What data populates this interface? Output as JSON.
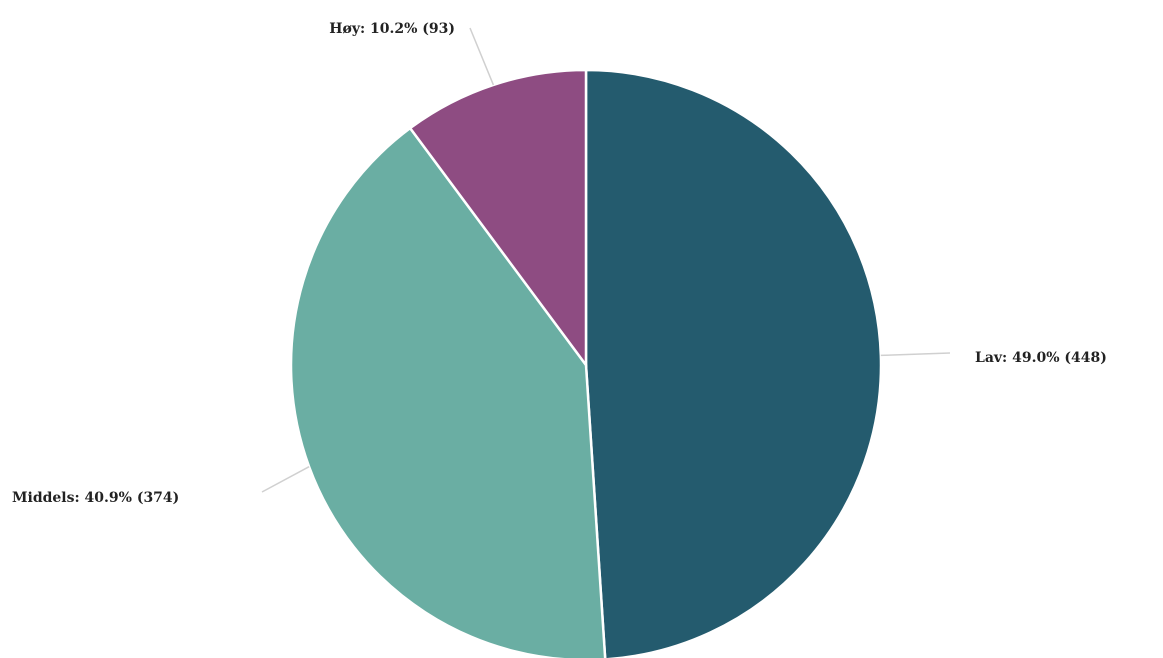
{
  "chart_data": {
    "type": "pie",
    "title": "",
    "slices": [
      {
        "name": "Lav",
        "value": 448,
        "percent": 49.0,
        "color": "#245b6e",
        "label": "Lav: 49.0% (448)"
      },
      {
        "name": "Middels",
        "value": 374,
        "percent": 40.9,
        "color": "#6aaea3",
        "label": "Middels: 40.9% (374)"
      },
      {
        "name": "Høy",
        "value": 93,
        "percent": 10.2,
        "color": "#8e4c82",
        "label": "Høy: 10.2% (93)"
      }
    ],
    "start_angle": "12 o'clock",
    "direction": "clockwise",
    "legend": "none"
  }
}
